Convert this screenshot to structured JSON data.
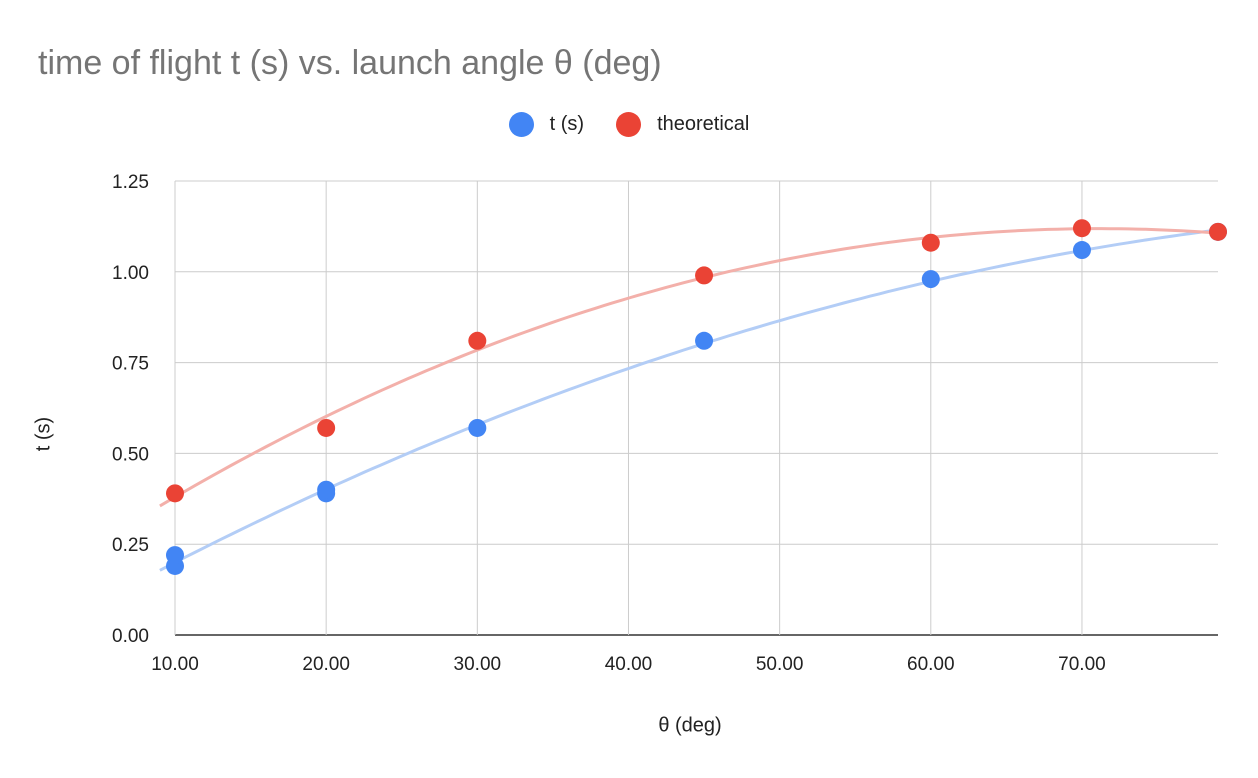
{
  "chart_data": {
    "type": "scatter",
    "title": "time of flight t (s) vs. launch angle θ (deg)",
    "xlabel": "θ (deg)",
    "ylabel": "t (s)",
    "xlim": [
      10,
      79
    ],
    "ylim": [
      0,
      1.25
    ],
    "x_ticks": [
      "10.00",
      "20.00",
      "30.00",
      "40.00",
      "50.00",
      "60.00",
      "70.00"
    ],
    "x_tick_values": [
      10,
      20,
      30,
      40,
      50,
      60,
      70
    ],
    "y_ticks": [
      "0.00",
      "0.25",
      "0.50",
      "0.75",
      "1.00",
      "1.25"
    ],
    "y_tick_values": [
      0,
      0.25,
      0.5,
      0.75,
      1.0,
      1.25
    ],
    "grid": true,
    "legend_position": "top-center",
    "trendline": "polynomial",
    "series": [
      {
        "name": "t (s)",
        "color": "#4285F4",
        "trend_color": "#B3CDF6",
        "points": [
          {
            "x": 10,
            "y": 0.19
          },
          {
            "x": 10,
            "y": 0.22
          },
          {
            "x": 20,
            "y": 0.39
          },
          {
            "x": 20,
            "y": 0.4
          },
          {
            "x": 30,
            "y": 0.57
          },
          {
            "x": 45,
            "y": 0.81
          },
          {
            "x": 60,
            "y": 0.98
          },
          {
            "x": 70,
            "y": 1.06
          },
          {
            "x": 79,
            "y": 1.11
          }
        ]
      },
      {
        "name": "theoretical",
        "color": "#EA4335",
        "trend_color": "#F3B0AA",
        "points": [
          {
            "x": 10,
            "y": 0.39
          },
          {
            "x": 20,
            "y": 0.57
          },
          {
            "x": 30,
            "y": 0.81
          },
          {
            "x": 45,
            "y": 0.99
          },
          {
            "x": 60,
            "y": 1.08
          },
          {
            "x": 70,
            "y": 1.12
          },
          {
            "x": 79,
            "y": 1.11
          }
        ]
      }
    ]
  }
}
